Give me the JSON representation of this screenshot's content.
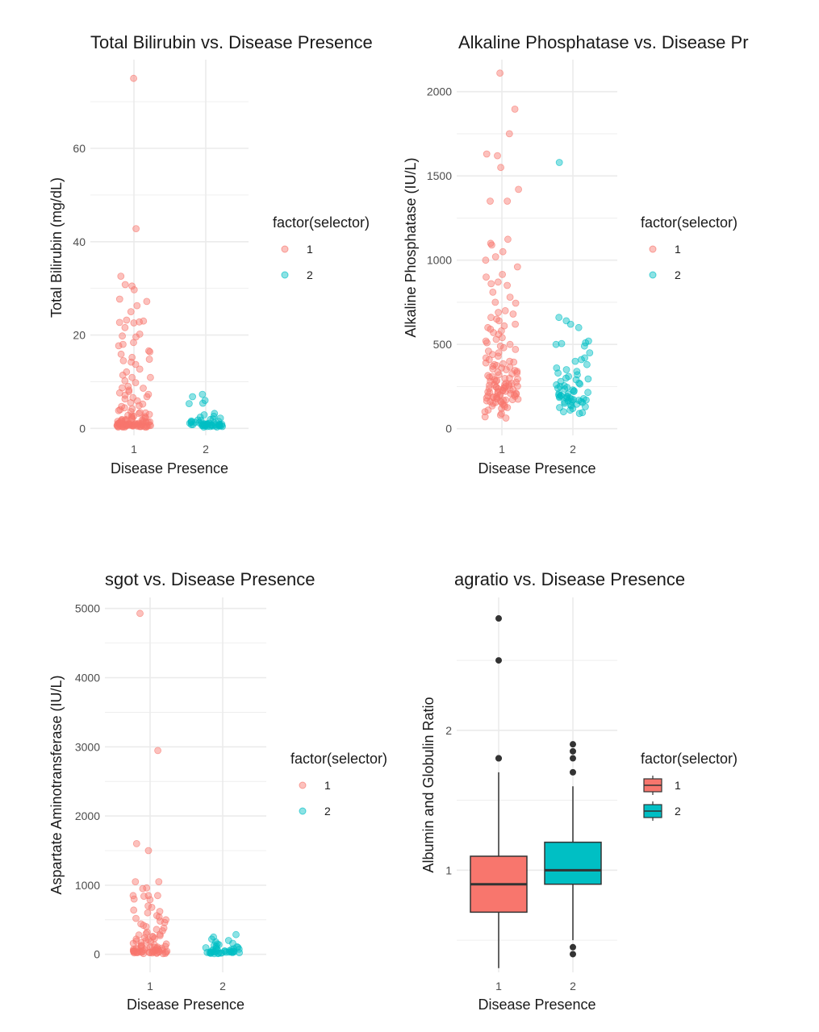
{
  "colors": {
    "g1": "#F8766D",
    "g2": "#00BFC4",
    "grid": "#ebebeb",
    "outlier": "#333333"
  },
  "chart_data": [
    {
      "type": "scatter",
      "title": "Total Bilirubin vs. Disease Presence",
      "xlabel": "Disease Presence",
      "ylabel": "Total Bilirubin (mg/dL)",
      "categories": [
        "1",
        "2"
      ],
      "yticks": [
        "0",
        "20",
        "40",
        "60"
      ],
      "ylim": [
        -1.5,
        79
      ],
      "grid": true,
      "legend": {
        "title": "factor(selector)",
        "entries": [
          "1",
          "2"
        ],
        "position": "right"
      },
      "series": [
        {
          "name": "1",
          "category": "1",
          "values": [
            75,
            42.8,
            32.6,
            30.8,
            30.5,
            29.7,
            27.7,
            27.2,
            26.3,
            25.0,
            23.2,
            23.0,
            22.8,
            22.7,
            22.6,
            21.6,
            20.2,
            19.8,
            19.6,
            18.4,
            18.0,
            17.7,
            16.6,
            16.4,
            15.9,
            15.2,
            14.8,
            14.5,
            14.2,
            13.7,
            12.7,
            12.1,
            11.4,
            10.9,
            10.9,
            10.2,
            9.8,
            9.0,
            8.7,
            8.6,
            8.2,
            7.9,
            7.6,
            7.3,
            7.1,
            6.8,
            6.6,
            6.3,
            5.9,
            5.5,
            5.2,
            4.9,
            4.7,
            4.4,
            4.2,
            4.0,
            3.8,
            3.6,
            3.4,
            3.2,
            3.0,
            2.8,
            2.7,
            2.6,
            2.4,
            2.3,
            2.2,
            2.0,
            1.9,
            1.8,
            1.8,
            1.7,
            1.6,
            1.5,
            1.4,
            1.4,
            1.3,
            1.2,
            1.1,
            1.1,
            1.0,
            1.0,
            0.9,
            0.9,
            0.9,
            0.8,
            0.8,
            0.8,
            0.7,
            0.7,
            0.7,
            0.7,
            0.7,
            0.6,
            0.6,
            0.6,
            0.6,
            0.6,
            0.5,
            0.5,
            0.5,
            0.5,
            0.5,
            0.5,
            0.4,
            0.4,
            0.4,
            0.4,
            0.4,
            0.3,
            0.3,
            0.3,
            0.3,
            0.3,
            1.2,
            1.5,
            0.9,
            2.5,
            3.3,
            1.9,
            0.8,
            1.1,
            0.6,
            0.7,
            0.9,
            1.0,
            0.8,
            0.7,
            2.1,
            1.6,
            0.8,
            0.6,
            0.9,
            1.3
          ]
        },
        {
          "name": "2",
          "category": "2",
          "values": [
            7.3,
            6.8,
            6.0,
            5.4,
            5.3,
            3.2,
            2.9,
            2.6,
            2.4,
            2.2,
            2.0,
            1.9,
            1.8,
            1.7,
            1.6,
            1.5,
            1.4,
            1.3,
            1.3,
            1.2,
            1.1,
            1.1,
            1.0,
            1.0,
            0.9,
            0.9,
            0.9,
            0.8,
            0.8,
            0.8,
            0.7,
            0.7,
            0.7,
            0.7,
            0.6,
            0.6,
            0.6,
            0.6,
            0.5,
            0.5,
            0.5,
            0.5,
            0.4,
            0.4,
            0.4,
            0.3,
            0.3,
            0.8,
            0.9,
            1.0,
            0.7,
            0.6,
            1.2,
            0.8,
            0.9
          ]
        }
      ]
    },
    {
      "type": "scatter",
      "title": "Alkaline Phosphatase vs. Disease Pr",
      "xlabel": "Disease Presence",
      "ylabel": "Alkaline Phosphatase (IU/L)",
      "categories": [
        "1",
        "2"
      ],
      "yticks": [
        "0",
        "500",
        "1000",
        "1500",
        "2000"
      ],
      "ylim": [
        -40,
        2190
      ],
      "grid": true,
      "legend": {
        "title": "factor(selector)",
        "entries": [
          "1",
          "2"
        ],
        "position": "right"
      },
      "series": [
        {
          "name": "1",
          "category": "1",
          "values": [
            2110,
            1896,
            1750,
            1630,
            1620,
            1550,
            1420,
            1350,
            1350,
            1124,
            1100,
            1090,
            1050,
            1020,
            1000,
            960,
            915,
            900,
            870,
            860,
            850,
            810,
            780,
            750,
            745,
            700,
            690,
            680,
            660,
            650,
            640,
            620,
            610,
            600,
            590,
            580,
            570,
            560,
            540,
            530,
            520,
            510,
            500,
            490,
            480,
            470,
            460,
            450,
            440,
            430,
            420,
            410,
            400,
            395,
            390,
            385,
            380,
            375,
            370,
            365,
            360,
            355,
            350,
            345,
            340,
            335,
            330,
            325,
            320,
            315,
            310,
            305,
            300,
            298,
            295,
            290,
            285,
            282,
            280,
            275,
            270,
            268,
            265,
            262,
            260,
            258,
            255,
            252,
            250,
            248,
            245,
            242,
            240,
            238,
            235,
            232,
            230,
            228,
            225,
            222,
            220,
            218,
            215,
            212,
            210,
            208,
            205,
            202,
            200,
            198,
            195,
            192,
            190,
            188,
            185,
            182,
            180,
            178,
            175,
            172,
            170,
            168,
            165,
            162,
            160,
            158,
            155,
            150,
            145,
            140,
            135,
            130,
            125,
            120,
            110,
            100,
            90,
            80,
            70,
            63
          ]
        },
        {
          "name": "2",
          "category": "2",
          "values": [
            1580,
            660,
            640,
            620,
            600,
            520,
            510,
            505,
            500,
            490,
            450,
            420,
            410,
            400,
            380,
            360,
            350,
            340,
            330,
            320,
            310,
            300,
            295,
            290,
            280,
            270,
            265,
            260,
            255,
            250,
            245,
            240,
            235,
            230,
            225,
            220,
            215,
            210,
            205,
            200,
            198,
            195,
            192,
            190,
            188,
            185,
            182,
            180,
            178,
            175,
            172,
            170,
            168,
            165,
            162,
            160,
            158,
            155,
            150,
            145,
            140,
            135,
            130,
            125,
            120,
            110,
            100,
            95,
            90
          ]
        }
      ]
    },
    {
      "type": "scatter",
      "title": "sgot vs. Disease Presence",
      "xlabel": "Disease Presence",
      "ylabel": "Aspartate Aminotransferase (IU/L)",
      "categories": [
        "1",
        "2"
      ],
      "yticks": [
        "0",
        "1000",
        "2000",
        "3000",
        "4000",
        "5000"
      ],
      "ylim": [
        -260,
        5160
      ],
      "grid": true,
      "legend": {
        "title": "factor(selector)",
        "entries": [
          "1",
          "2"
        ],
        "position": "right"
      },
      "series": [
        {
          "name": "1",
          "category": "1",
          "values": [
            4929,
            2946,
            1600,
            1500,
            1050,
            1050,
            960,
            950,
            850,
            850,
            850,
            840,
            800,
            790,
            700,
            680,
            640,
            620,
            600,
            560,
            540,
            520,
            500,
            480,
            460,
            440,
            420,
            400,
            380,
            360,
            340,
            320,
            300,
            290,
            280,
            270,
            260,
            250,
            240,
            230,
            220,
            210,
            200,
            190,
            180,
            170,
            160,
            150,
            140,
            130,
            120,
            115,
            110,
            105,
            100,
            95,
            90,
            85,
            80,
            75,
            70,
            65,
            60,
            55,
            50,
            48,
            46,
            44,
            42,
            40,
            38,
            36,
            34,
            32,
            30,
            28,
            26,
            24,
            22,
            20,
            18,
            16,
            14,
            12,
            10,
            60,
            90,
            40,
            25,
            70,
            110,
            35,
            55,
            45,
            30
          ]
        },
        {
          "name": "2",
          "category": "2",
          "values": [
            285,
            250,
            220,
            200,
            180,
            160,
            150,
            140,
            130,
            120,
            110,
            100,
            95,
            90,
            85,
            80,
            75,
            70,
            65,
            60,
            55,
            50,
            48,
            45,
            42,
            40,
            38,
            36,
            34,
            32,
            30,
            28,
            26,
            24,
            22,
            20,
            18,
            16,
            14,
            12,
            10,
            35,
            45,
            25,
            30
          ]
        }
      ]
    },
    {
      "type": "box",
      "title": "agratio vs. Disease Presence",
      "xlabel": "Disease Presence",
      "ylabel": "Albumin and Globulin Ratio",
      "categories": [
        "1",
        "2"
      ],
      "yticks": [
        "1",
        "2"
      ],
      "ylim": [
        0.27,
        2.95
      ],
      "grid": true,
      "legend": {
        "title": "factor(selector)",
        "entries": [
          "1",
          "2"
        ],
        "position": "right"
      },
      "series": [
        {
          "name": "1",
          "category": "1",
          "q1": 0.7,
          "median": 0.9,
          "q3": 1.1,
          "whisker_low": 0.3,
          "whisker_high": 1.7,
          "outliers": [
            1.8,
            1.8,
            2.5,
            2.8
          ]
        },
        {
          "name": "2",
          "category": "2",
          "q1": 0.9,
          "median": 1.0,
          "q3": 1.2,
          "whisker_low": 0.5,
          "whisker_high": 1.6,
          "outliers": [
            0.4,
            0.45,
            1.7,
            1.8,
            1.85,
            1.9
          ]
        }
      ]
    }
  ]
}
